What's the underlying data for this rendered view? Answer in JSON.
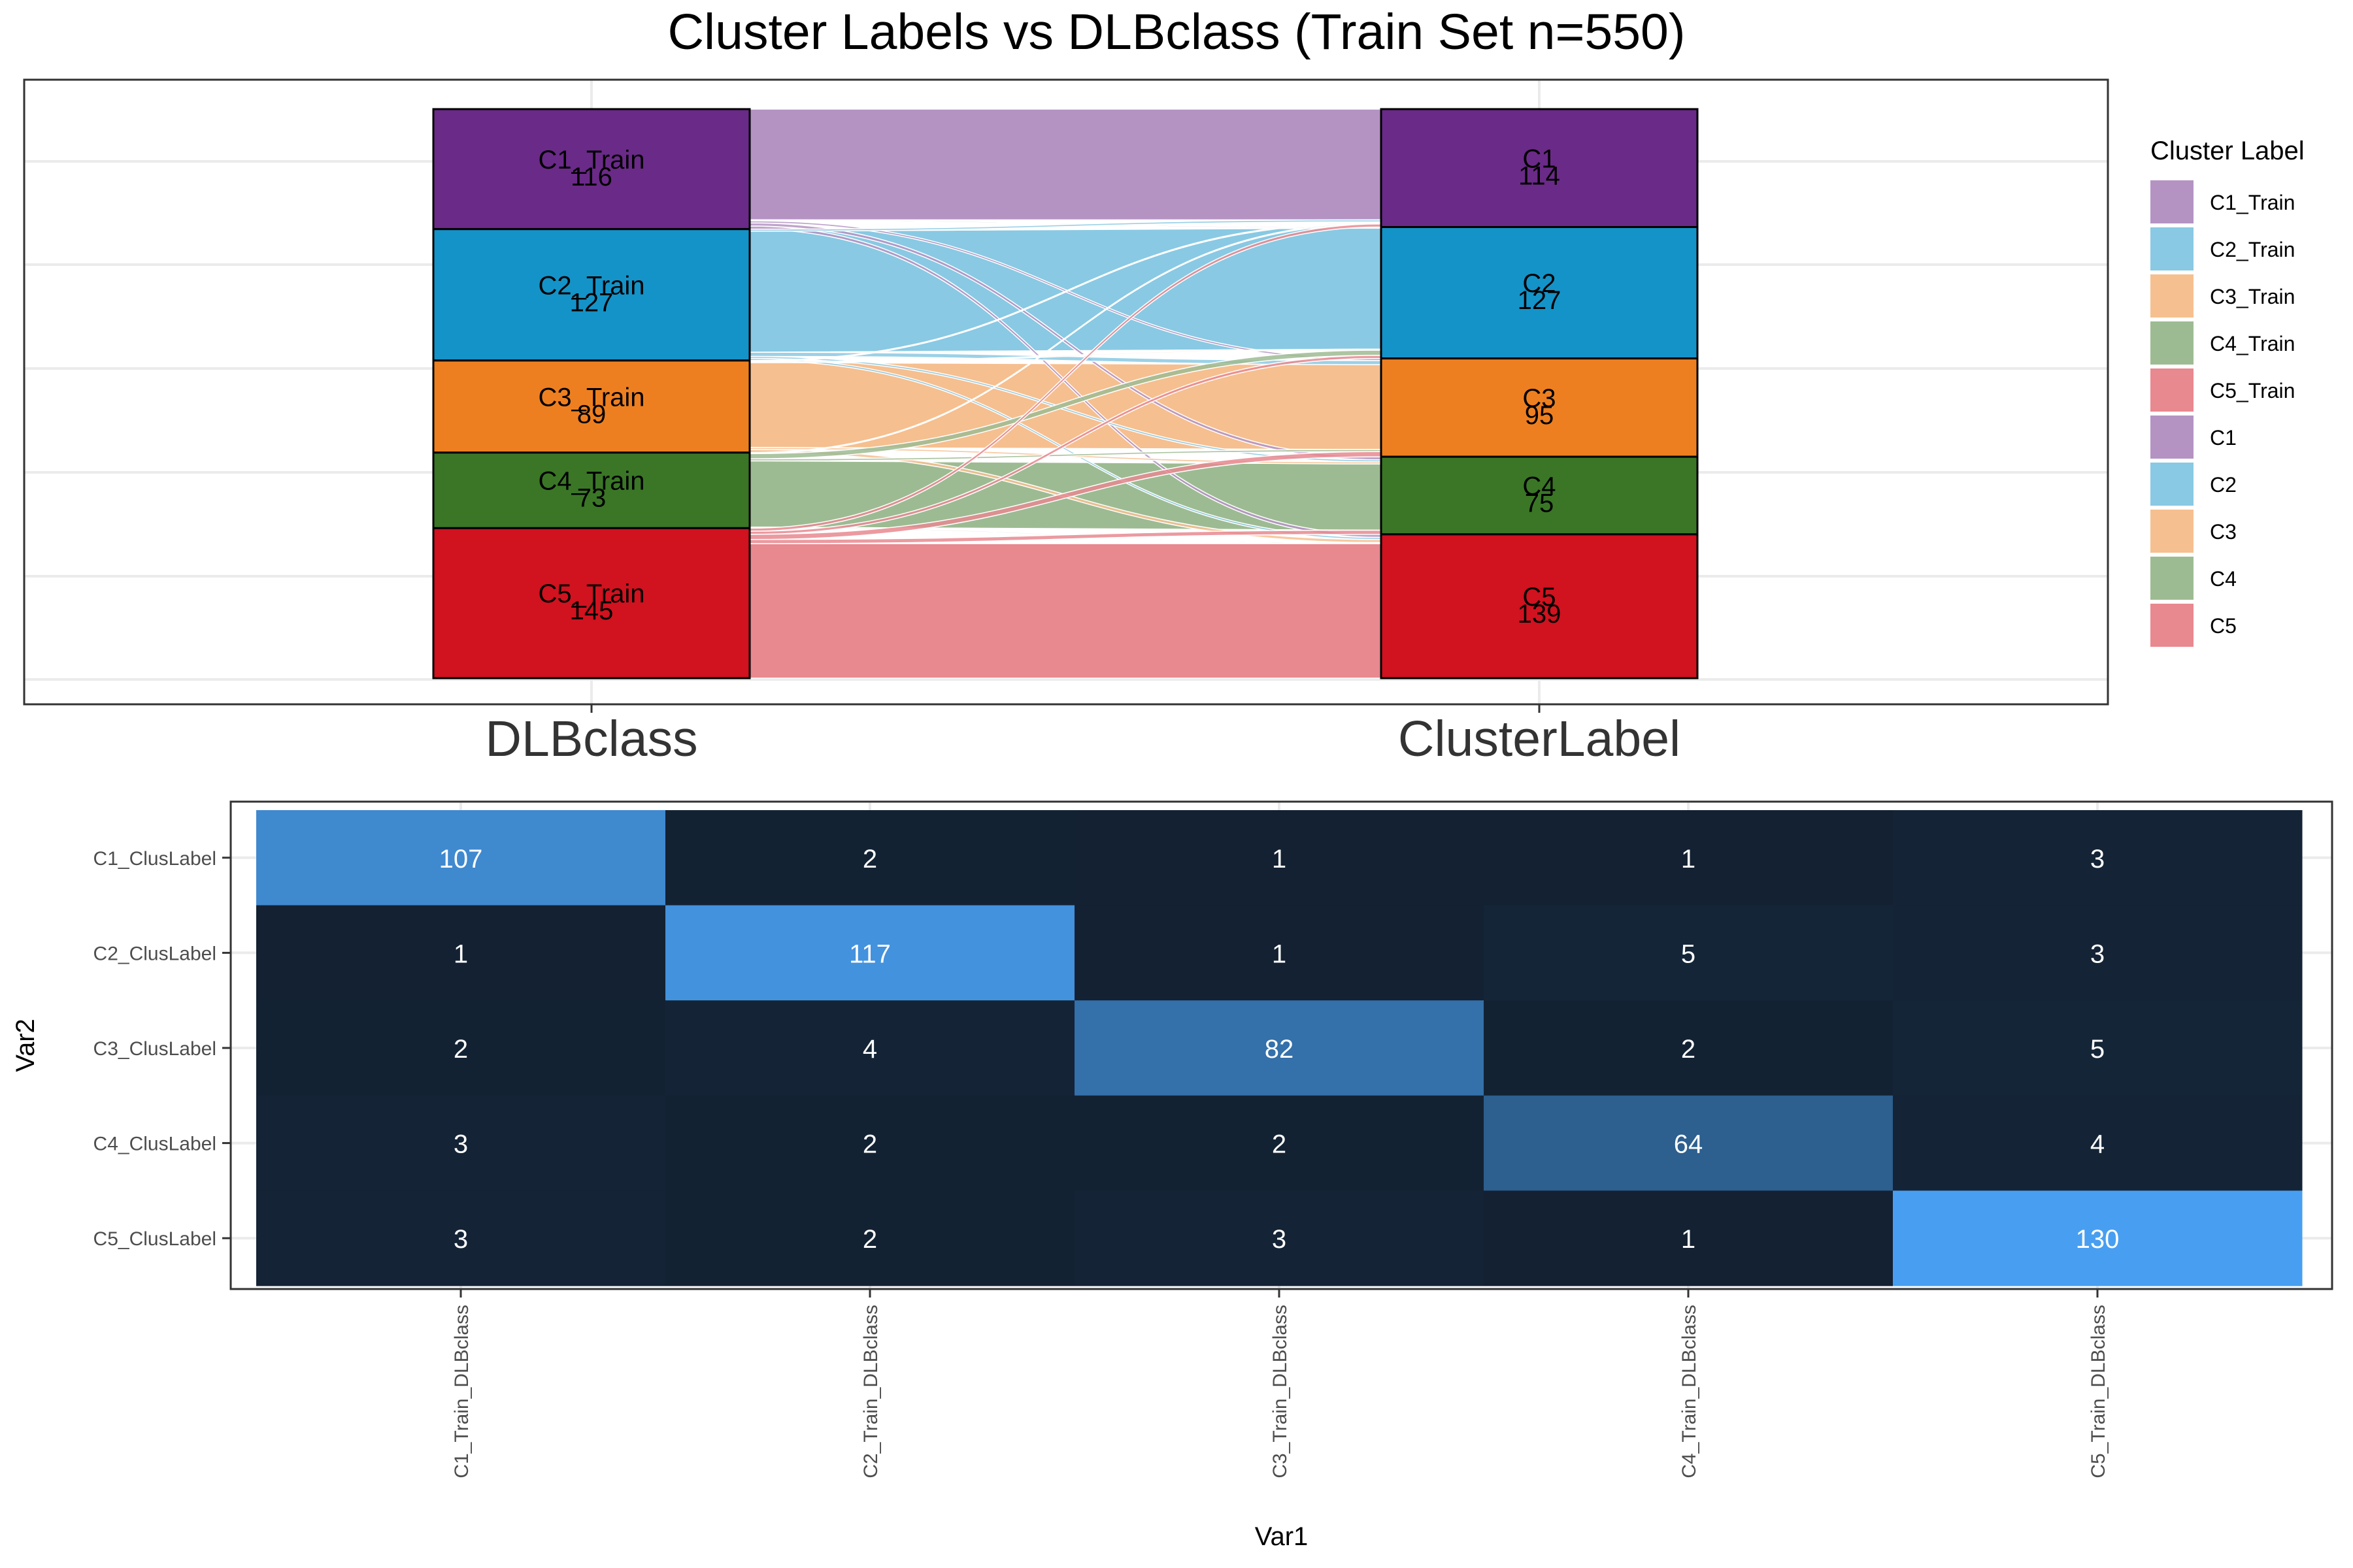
{
  "title": "Cluster Labels vs DLBclass (Train Set n=550)",
  "chart_data": [
    {
      "type": "alluvial",
      "axes": [
        "DLBclass",
        "ClusterLabel"
      ],
      "left_strata": [
        {
          "name": "C1_Train",
          "count": 116
        },
        {
          "name": "C2_Train",
          "count": 127
        },
        {
          "name": "C3_Train",
          "count": 89
        },
        {
          "name": "C4_Train",
          "count": 73
        },
        {
          "name": "C5_Train",
          "count": 145
        }
      ],
      "right_strata": [
        {
          "name": "C1",
          "count": 114
        },
        {
          "name": "C2",
          "count": 127
        },
        {
          "name": "C3",
          "count": 95
        },
        {
          "name": "C4",
          "count": 75
        },
        {
          "name": "C5",
          "count": 139
        }
      ],
      "stratum_colors": [
        "#6a2a87",
        "#1493c8",
        "#ee7f20",
        "#3a7626",
        "#d1121f"
      ],
      "legend": {
        "title": "Cluster Label",
        "position": "right",
        "items": [
          {
            "label": "C1_Train",
            "color": "#b493c3"
          },
          {
            "label": "C2_Train",
            "color": "#89c9e3"
          },
          {
            "label": "C3_Train",
            "color": "#f6bf8f"
          },
          {
            "label": "C4_Train",
            "color": "#9dbb92"
          },
          {
            "label": "C5_Train",
            "color": "#e8888f"
          },
          {
            "label": "C1",
            "color": "#b493c3"
          },
          {
            "label": "C2",
            "color": "#89c9e3"
          },
          {
            "label": "C3",
            "color": "#f6bf8f"
          },
          {
            "label": "C4",
            "color": "#9dbb92"
          },
          {
            "label": "C5",
            "color": "#e8888f"
          }
        ]
      }
    },
    {
      "type": "heatmap",
      "xlabel": "Var1",
      "ylabel": "Var2",
      "x": [
        "C1_Train_DLBclass",
        "C2_Train_DLBclass",
        "C3_Train_DLBclass",
        "C4_Train_DLBclass",
        "C5_Train_DLBclass"
      ],
      "y": [
        "C1_ClusLabel",
        "C2_ClusLabel",
        "C3_ClusLabel",
        "C4_ClusLabel",
        "C5_ClusLabel"
      ],
      "values": [
        [
          107,
          2,
          1,
          1,
          3
        ],
        [
          1,
          117,
          1,
          5,
          3
        ],
        [
          2,
          4,
          82,
          2,
          5
        ],
        [
          3,
          2,
          2,
          64,
          4
        ],
        [
          3,
          2,
          3,
          1,
          130
        ]
      ],
      "color_low": "#132132",
      "color_high": "#489ff1",
      "value_range": [
        1,
        130
      ],
      "grid": true
    }
  ]
}
